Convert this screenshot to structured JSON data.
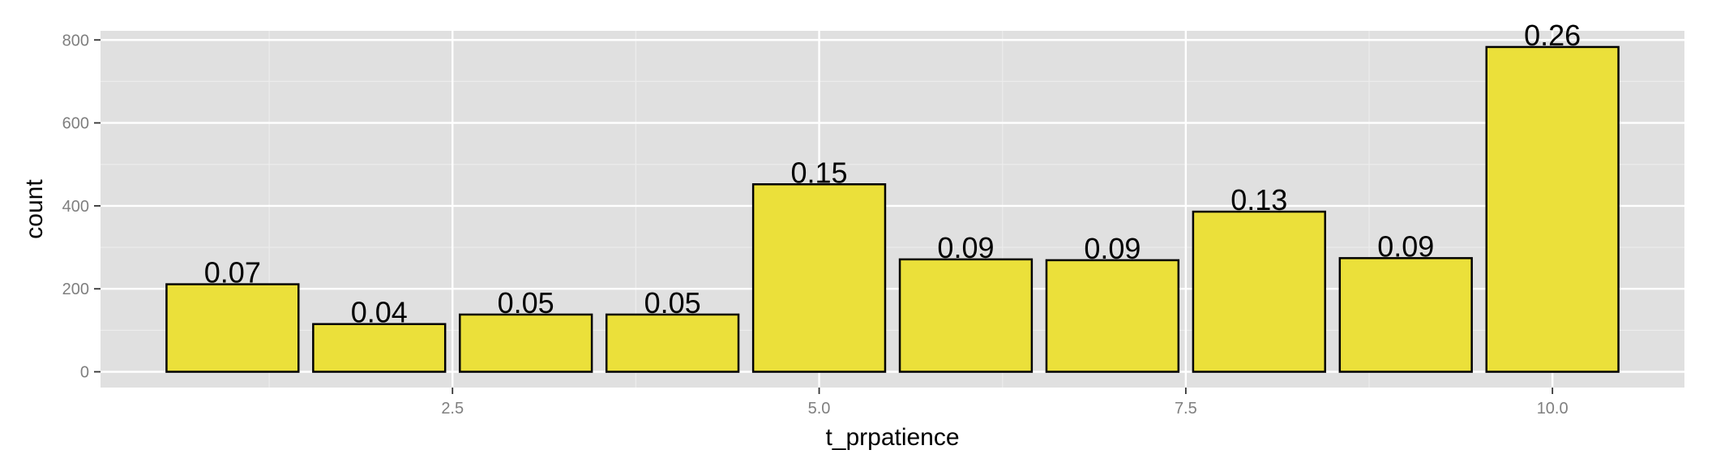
{
  "chart_data": {
    "type": "bar",
    "xlabel": "t_prpatience",
    "ylabel": "count",
    "x": [
      1,
      2,
      3,
      4,
      5,
      6,
      7,
      8,
      9,
      10
    ],
    "values": [
      211,
      115,
      138,
      138,
      452,
      271,
      269,
      386,
      274,
      783
    ],
    "labels": [
      "0.07",
      "0.04",
      "0.05",
      "0.05",
      "0.15",
      "0.09",
      "0.09",
      "0.13",
      "0.09",
      "0.26"
    ],
    "xlim": [
      0.1,
      10.9
    ],
    "ylim": [
      -38,
      822
    ],
    "xticks": [
      2.5,
      5.0,
      7.5,
      10.0
    ],
    "xtick_labels": [
      "2.5",
      "5.0",
      "7.5",
      "10.0"
    ],
    "yticks": [
      0,
      200,
      400,
      600,
      800
    ],
    "ytick_labels": [
      "0",
      "200",
      "400",
      "600",
      "800"
    ],
    "bar_width": 0.9,
    "grid": true,
    "colors": {
      "bar_fill": "#ebe03a",
      "bar_stroke": "#000000",
      "panel_background": "#e0e0e0",
      "grid_major": "#ffffff",
      "grid_minor": "#ececec"
    }
  }
}
